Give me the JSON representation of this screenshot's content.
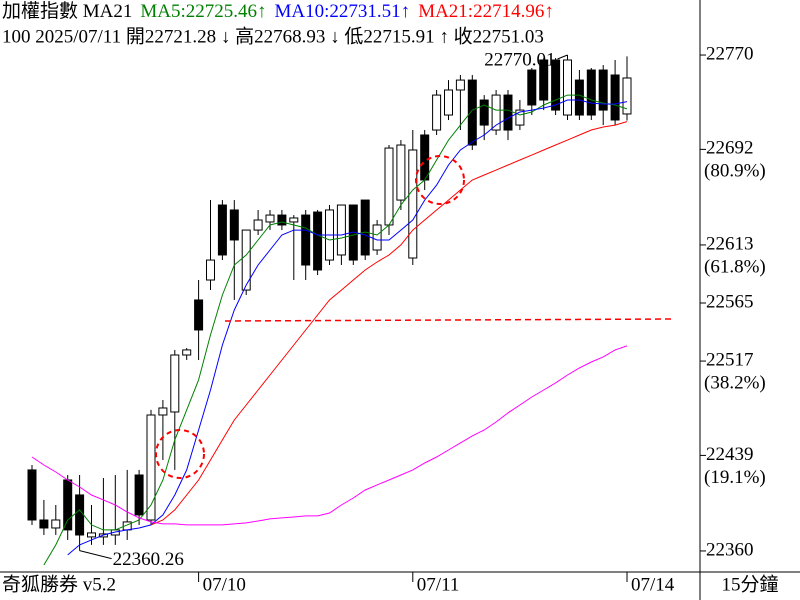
{
  "chart_data": {
    "type": "candlestick",
    "title": "加權指數 MA21",
    "info_line": "100 2025/07/11 開22721.28 ↓ 高22768.93 ↓ 低22715.91 ↑ 收22751.03",
    "brand": "奇狐勝券 v5.2",
    "period": "15分鐘",
    "max_label": "22770.01",
    "min_label": "22360.26",
    "up_color": "#ffffff",
    "down_color": "#000000",
    "categories": [
      null,
      null,
      null,
      null,
      null,
      null,
      null,
      null,
      null,
      null,
      null,
      null,
      null,
      null,
      "07/10",
      null,
      null,
      null,
      null,
      null,
      null,
      null,
      null,
      null,
      null,
      null,
      null,
      null,
      null,
      null,
      null,
      null,
      "07/11",
      null,
      null,
      null,
      null,
      null,
      null,
      null,
      null,
      null,
      null,
      null,
      null,
      null,
      null,
      null,
      null,
      null,
      "07/14"
    ],
    "open": [
      22427,
      22385.6,
      22379,
      22418.7,
      22406.3,
      22371.6,
      22371.6,
      22373.2,
      22377.4,
      22422.8,
      22385.6,
      22472.4,
      22474.9,
      22522,
      22567.5,
      22584,
      22646,
      22641.9,
      22575.7,
      22625.3,
      22632,
      22637.7,
      22632,
      22637.7,
      22640.2,
      22600.5,
      22604.7,
      22646,
      22650.1,
      22608.8,
      22629.5,
      22650.1,
      22602.2,
      22703.9,
      22708,
      22720.4,
      22741.1,
      22749.3,
      22732.8,
      22708,
      22736.9,
      22712.1,
      22757.6,
      22765.9,
      22765.9,
      22720.4,
      22749.3,
      22757.6,
      22757.6,
      22753.5,
      22721.28
    ],
    "high": [
      22431.1,
      22402.2,
      22398,
      22422.8,
      22422.8,
      22398,
      22420.3,
      22422.8,
      22427,
      22427,
      22476.6,
      22484.8,
      22526.2,
      22527.8,
      22584,
      22650.1,
      22650.1,
      22650.1,
      22625.3,
      22641.9,
      22641.9,
      22641.9,
      22637.7,
      22641.9,
      22641.9,
      22646,
      22646,
      22646,
      22650.1,
      22633.6,
      22695.6,
      22699.7,
      22708,
      22708,
      22741.1,
      22749.3,
      22753.5,
      22753.5,
      22736.9,
      22741.1,
      22741.1,
      22732.8,
      22759.3,
      22767.5,
      22767.5,
      22770.01,
      22757.6,
      22759.3,
      22761.7,
      22765.9,
      22768.93
    ],
    "low": [
      22381.5,
      22373.2,
      22373.2,
      22369.1,
      22360.26,
      22365,
      22365,
      22365,
      22369.1,
      22381.5,
      22381.5,
      22435.2,
      22427,
      22517.9,
      22517.9,
      22575.7,
      22600.5,
      22567.5,
      22571.6,
      22621.2,
      22625.3,
      22625.3,
      22584,
      22584,
      22588.1,
      22596.4,
      22596.4,
      22596.4,
      22600.5,
      22604.7,
      22621.2,
      22641.9,
      22596.4,
      22658.4,
      22703.9,
      22716.3,
      22708,
      22691.5,
      22699.7,
      22703.9,
      22699.7,
      22708,
      22720.4,
      22724.5,
      22720.4,
      22716.3,
      22716.3,
      22716.3,
      22712.1,
      22712.1,
      22715.91
    ],
    "close": [
      22385.6,
      22379,
      22385.6,
      22377.4,
      22373.2,
      22374.9,
      22374.1,
      22377.4,
      22384,
      22389.8,
      22472.4,
      22478.2,
      22522,
      22526.2,
      22542.7,
      22600.5,
      22604.7,
      22617.1,
      22625.3,
      22633.6,
      22637.7,
      22629.5,
      22635.3,
      22596.4,
      22592.3,
      22641.9,
      22646,
      22600.5,
      22604.7,
      22629.5,
      22693.1,
      22695.6,
      22691.5,
      22666.7,
      22736.9,
      22741.1,
      22749.3,
      22695.6,
      22712.1,
      22736.9,
      22708,
      22724.5,
      22728.7,
      22732.8,
      22724.5,
      22765.9,
      22720.4,
      22720.4,
      22724.5,
      22716.3,
      22751.03
    ],
    "series": [
      {
        "name": "MA5:22725.46↑",
        "color": "#008000",
        "values": [
          null,
          22348.4,
          22365,
          22385.6,
          22393.9,
          22381.5,
          22377.4,
          22377.4,
          22381.5,
          22385.6,
          22398,
          22418.7,
          22451.8,
          22476.6,
          22501.4,
          22538.6,
          22571.6,
          22596.4,
          22604.7,
          22617.1,
          22629.5,
          22632,
          22629.5,
          22627,
          22621.2,
          22617.1,
          22618.7,
          22621.2,
          22623.7,
          22621.2,
          22629.5,
          22646,
          22658.4,
          22666.7,
          22683.2,
          22699.7,
          22712.1,
          22724.5,
          22728.7,
          22724.5,
          22724.5,
          22720.4,
          22722.9,
          22728.7,
          22732.8,
          22736.9,
          22736.9,
          22732.8,
          22730.3,
          22728.7,
          22725.46
        ]
      },
      {
        "name": "MA10:22731.51↑",
        "color": "#0000ff",
        "values": [
          null,
          null,
          null,
          22356.7,
          22365,
          22369.1,
          22373.2,
          22375.7,
          22377.4,
          22379,
          22381.5,
          22389.8,
          22406.3,
          22427,
          22460,
          22493.1,
          22530.3,
          22559.2,
          22579.9,
          22596.4,
          22608.8,
          22621.2,
          22625.3,
          22625.3,
          22621.2,
          22621.2,
          22621.2,
          22623.7,
          22621.2,
          22617.1,
          22617.1,
          22625.3,
          22633.6,
          22650.1,
          22662.5,
          22679.1,
          22691.5,
          22698.1,
          22703.9,
          22712.1,
          22717.9,
          22722.9,
          22724.5,
          22726.2,
          22728.7,
          22732.8,
          22732.8,
          22730.3,
          22729.5,
          22729.5,
          22731.51
        ]
      },
      {
        "name": "MA21:22714.96↑",
        "color": "#ff0000",
        "values": [
          null,
          null,
          null,
          null,
          null,
          null,
          null,
          null,
          null,
          null,
          22381.5,
          22385.6,
          22393.9,
          22406.3,
          22418.7,
          22435.2,
          22451.8,
          22468.3,
          22480.7,
          22493.1,
          22505.5,
          22517.9,
          22530.3,
          22542.7,
          22555.1,
          22567.5,
          22575.7,
          22584,
          22592.3,
          22598.9,
          22604.7,
          22613,
          22625.3,
          22633.6,
          22641.9,
          22650.1,
          22658.4,
          22666.7,
          22670.8,
          22674.9,
          22679.1,
          22683.2,
          22687.3,
          22691.5,
          22695.6,
          22699.7,
          22703.9,
          22708,
          22710.5,
          22712.1,
          22714.96
        ]
      },
      {
        "color": "#ff00ff",
        "values": [
          22437.7,
          22431.1,
          22425.3,
          22418.7,
          22412.9,
          22406.3,
          22402.2,
          22398,
          22392.2,
          22387.3,
          22384,
          22382.4,
          22382.4,
          22381.5,
          22381.5,
          22381.5,
          22381.5,
          22382.4,
          22383.2,
          22384.8,
          22386.5,
          22387.3,
          22388.1,
          22389,
          22389,
          22391.4,
          22398,
          22403.8,
          22410.4,
          22414.6,
          22418.7,
          22422.8,
          22427,
          22432.7,
          22437.7,
          22443.5,
          22449.3,
          22455.1,
          22460,
          22466.6,
          22474.1,
          22480.7,
          22487.3,
          22493.1,
          22498.9,
          22505.5,
          22511.3,
          22516.2,
          22520.4,
          22526.2,
          22529.5
        ]
      }
    ],
    "ylim": [
      22342.6,
      22815.5
    ],
    "yticks": [
      22770,
      22692,
      22613,
      22565,
      22517,
      22439,
      22360
    ],
    "fib_labels": [
      {
        "value": 22692,
        "label": "(80.9%)"
      },
      {
        "value": 22613,
        "label": "(61.8%)"
      },
      {
        "value": 22517,
        "label": "(38.2%)"
      },
      {
        "value": 22439,
        "label": "(19.1%)"
      }
    ]
  }
}
